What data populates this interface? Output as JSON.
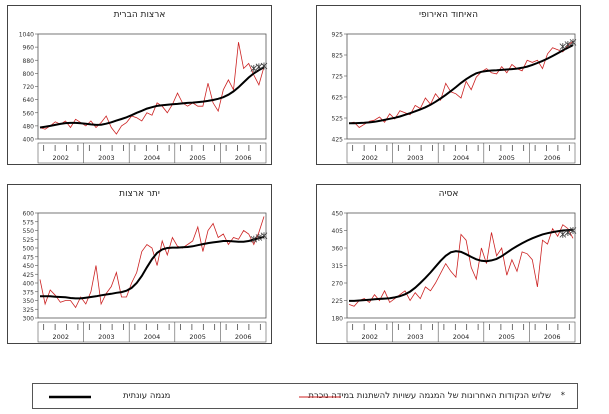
{
  "chart_data": [
    {
      "type": "line",
      "title": "ארצות הברית",
      "ylim": [
        400,
        1040
      ],
      "yticks": [
        400,
        480,
        560,
        640,
        720,
        800,
        880,
        960,
        1040
      ],
      "years": [
        "2002",
        "2003",
        "2004",
        "2005",
        "2006"
      ],
      "series": [
        {
          "role": "actual",
          "values": [
            470,
            460,
            480,
            505,
            490,
            510,
            470,
            520,
            500,
            480,
            510,
            470,
            500,
            540,
            470,
            430,
            480,
            500,
            540,
            530,
            510,
            560,
            545,
            620,
            600,
            560,
            610,
            680,
            620,
            600,
            620,
            600,
            600,
            740,
            620,
            570,
            700,
            760,
            700,
            990,
            830,
            860,
            790,
            730,
            840
          ]
        },
        {
          "role": "trend",
          "values": [
            470,
            475,
            480,
            486,
            492,
            497,
            498,
            498,
            496,
            493,
            489,
            486,
            487,
            493,
            502,
            512,
            522,
            532,
            545,
            560,
            572,
            585,
            594,
            602,
            606,
            609,
            612,
            614,
            617,
            620,
            622,
            625,
            628,
            632,
            638,
            645,
            655,
            670,
            690,
            715,
            745,
            775,
            800,
            820,
            838
          ]
        },
        {
          "role": "forecast",
          "values": [
            830,
            840,
            845
          ]
        }
      ]
    },
    {
      "type": "line",
      "title": "האיחוד האירופי",
      "ylim": [
        425,
        925
      ],
      "yticks": [
        425,
        525,
        625,
        725,
        825,
        925
      ],
      "years": [
        "2002",
        "2003",
        "2004",
        "2005",
        "2006"
      ],
      "series": [
        {
          "role": "actual",
          "values": [
            500,
            505,
            480,
            495,
            510,
            515,
            530,
            505,
            545,
            520,
            560,
            550,
            540,
            585,
            570,
            620,
            590,
            640,
            610,
            690,
            650,
            640,
            620,
            700,
            660,
            720,
            745,
            760,
            740,
            735,
            770,
            740,
            780,
            760,
            750,
            800,
            790,
            800,
            760,
            830,
            860,
            850,
            840,
            870,
            890
          ]
        },
        {
          "role": "trend",
          "values": [
            500,
            500,
            501,
            502,
            504,
            507,
            511,
            516,
            521,
            526,
            532,
            540,
            548,
            557,
            566,
            576,
            588,
            602,
            618,
            635,
            653,
            672,
            692,
            710,
            725,
            738,
            745,
            749,
            751,
            752,
            754,
            756,
            758,
            760,
            764,
            770,
            778,
            787,
            797,
            808,
            820,
            833,
            847,
            860,
            872
          ]
        },
        {
          "role": "forecast",
          "values": [
            865,
            875,
            885
          ]
        }
      ]
    },
    {
      "type": "line",
      "title": "יתר ארצות",
      "ylim": [
        300,
        600
      ],
      "yticks": [
        300,
        325,
        350,
        375,
        400,
        425,
        450,
        475,
        500,
        525,
        550,
        575,
        600
      ],
      "years": [
        "2002",
        "2003",
        "2004",
        "2005",
        "2006"
      ],
      "series": [
        {
          "role": "actual",
          "values": [
            410,
            340,
            380,
            365,
            345,
            350,
            350,
            330,
            360,
            340,
            375,
            450,
            340,
            370,
            390,
            430,
            360,
            360,
            400,
            430,
            490,
            510,
            500,
            450,
            520,
            480,
            530,
            505,
            500,
            510,
            520,
            560,
            490,
            550,
            570,
            530,
            540,
            510,
            530,
            525,
            550,
            540,
            510,
            545,
            590
          ]
        },
        {
          "role": "trend",
          "values": [
            362,
            362,
            362,
            361,
            360,
            359,
            357,
            356,
            356,
            358,
            360,
            362,
            365,
            367,
            369,
            372,
            374,
            378,
            386,
            400,
            420,
            445,
            468,
            486,
            496,
            500,
            501,
            501,
            502,
            503,
            505,
            508,
            511,
            514,
            516,
            518,
            520,
            520,
            519,
            518,
            518,
            520,
            524,
            528,
            532
          ]
        },
        {
          "role": "forecast",
          "values": [
            525,
            530,
            535
          ]
        }
      ]
    },
    {
      "type": "line",
      "title": "אסיה",
      "ylim": [
        180,
        450
      ],
      "yticks": [
        180,
        225,
        270,
        315,
        360,
        405,
        450
      ],
      "years": [
        "2002",
        "2003",
        "2004",
        "2005",
        "2006"
      ],
      "series": [
        {
          "role": "actual",
          "values": [
            215,
            210,
            225,
            230,
            220,
            240,
            225,
            250,
            220,
            230,
            240,
            250,
            225,
            245,
            230,
            260,
            250,
            270,
            295,
            320,
            300,
            285,
            395,
            380,
            310,
            280,
            360,
            320,
            400,
            340,
            360,
            290,
            330,
            300,
            350,
            345,
            330,
            260,
            380,
            370,
            410,
            390,
            420,
            410,
            385
          ]
        },
        {
          "role": "trend",
          "values": [
            224,
            224,
            225,
            226,
            227,
            228,
            229,
            230,
            231,
            233,
            236,
            241,
            248,
            258,
            270,
            283,
            297,
            312,
            327,
            340,
            349,
            352,
            350,
            344,
            337,
            331,
            327,
            326,
            328,
            332,
            339,
            348,
            357,
            365,
            372,
            379,
            385,
            390,
            395,
            398,
            401,
            403,
            405,
            406,
            407
          ]
        },
        {
          "role": "forecast",
          "values": [
            395,
            400,
            405
          ]
        }
      ]
    }
  ],
  "legend": {
    "note_text": "שלוש הנקודות האחרונות של המגמה עשויות להשתנות במידה ניכרת",
    "note_symbol": "*",
    "trend_label": "מגמה עונתית",
    "colors": {
      "actual": "#cc2222",
      "trend": "#000000",
      "forecast": "#333333"
    }
  }
}
